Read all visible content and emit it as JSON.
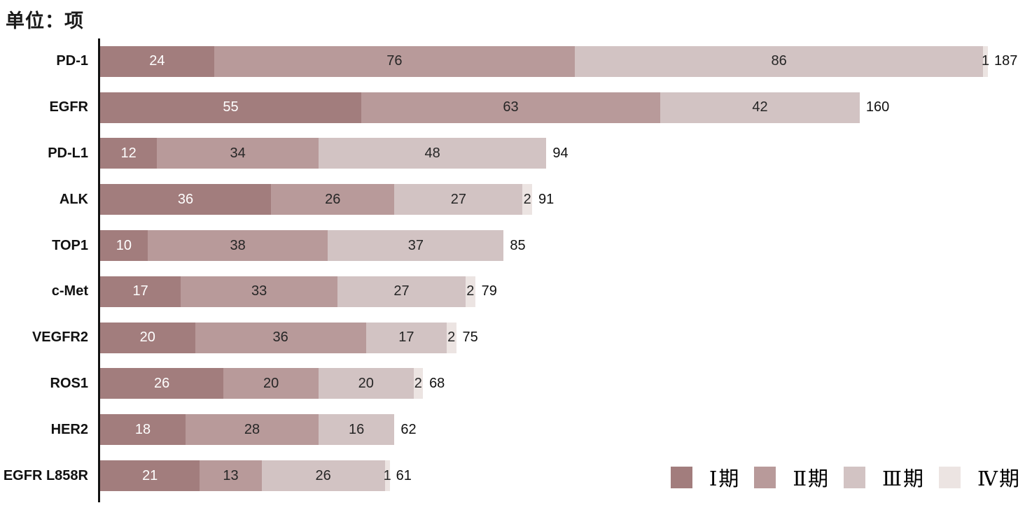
{
  "title": "单位：项",
  "colors": {
    "phase1": "#a27d7d",
    "phase2": "#b89a9a",
    "phase3": "#d2c3c3",
    "phase4": "#ece4e2",
    "axis": "#121212",
    "segment_label_dark": "#262626",
    "segment_label_light": "#ffffff"
  },
  "chart_data": {
    "type": "bar",
    "orientation": "horizontal",
    "stacked": true,
    "title": "单位：项",
    "categories": [
      "PD-1",
      "EGFR",
      "PD-L1",
      "ALK",
      "TOP1",
      "c-Met",
      "VEGFR2",
      "ROS1",
      "HER2",
      "EGFR L858R"
    ],
    "series": [
      {
        "name": "Ⅰ期",
        "color": "#a27d7d",
        "values": [
          24,
          55,
          12,
          36,
          10,
          17,
          20,
          26,
          18,
          21
        ]
      },
      {
        "name": "Ⅱ期",
        "color": "#b89a9a",
        "values": [
          76,
          63,
          34,
          26,
          38,
          33,
          36,
          20,
          28,
          13
        ]
      },
      {
        "name": "Ⅲ期",
        "color": "#d2c3c3",
        "values": [
          86,
          42,
          48,
          27,
          37,
          27,
          17,
          20,
          16,
          26
        ]
      },
      {
        "name": "Ⅳ期",
        "color": "#ece4e2",
        "values": [
          1,
          0,
          0,
          2,
          0,
          2,
          2,
          2,
          0,
          1
        ]
      }
    ],
    "totals": [
      187,
      160,
      94,
      91,
      85,
      79,
      75,
      68,
      62,
      61
    ],
    "xlim": [
      0,
      187
    ],
    "grid": false,
    "legend_position": "bottom-right"
  },
  "legend": {
    "items": [
      {
        "label": "Ⅰ期",
        "color": "#a27d7d"
      },
      {
        "label": "Ⅱ期",
        "color": "#b89a9a"
      },
      {
        "label": "Ⅲ期",
        "color": "#d2c3c3"
      },
      {
        "label": "Ⅳ期",
        "color": "#ece4e2"
      }
    ]
  }
}
